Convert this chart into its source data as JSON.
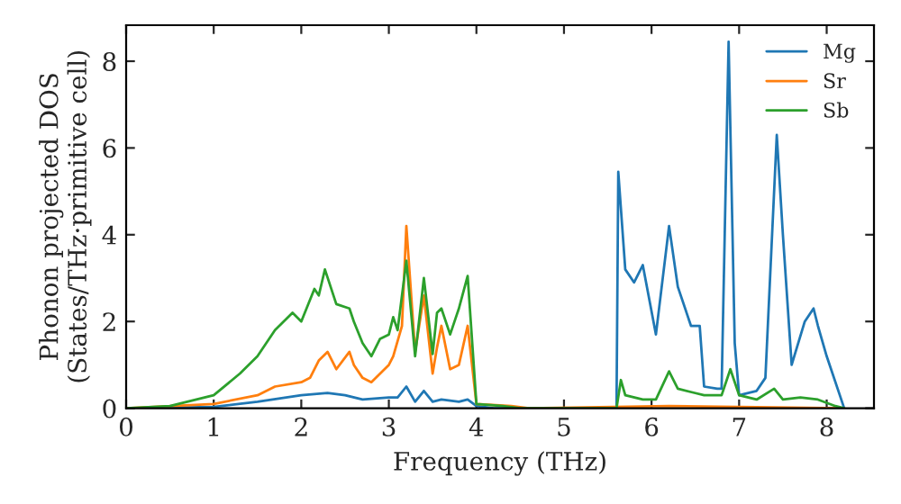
{
  "chart_data": {
    "type": "line",
    "xlabel": "Frequency (THz)",
    "ylabel": "Phonon projected DOS\n(States/THz·primitive cell)",
    "xlim": [
      0,
      8.54
    ],
    "ylim": [
      0,
      8.83
    ],
    "xticks": [
      0,
      1,
      2,
      3,
      4,
      5,
      6,
      7,
      8
    ],
    "yticks": [
      0,
      2,
      4,
      6,
      8
    ],
    "legend": "top right",
    "grid": false,
    "series": [
      {
        "name": "Mg",
        "color": "#1f77b4",
        "x": [
          0,
          1.0,
          1.5,
          2.0,
          2.3,
          2.5,
          2.7,
          3.0,
          3.1,
          3.2,
          3.3,
          3.4,
          3.5,
          3.6,
          3.8,
          3.9,
          4.0,
          4.2,
          5.6,
          5.62,
          5.7,
          5.8,
          5.9,
          6.05,
          6.2,
          6.3,
          6.45,
          6.55,
          6.6,
          6.75,
          6.8,
          6.88,
          6.95,
          7.0,
          7.2,
          7.3,
          7.43,
          7.5,
          7.6,
          7.75,
          7.85,
          7.9,
          8.0,
          8.15,
          8.2
        ],
        "values": [
          0,
          0.03,
          0.15,
          0.3,
          0.35,
          0.3,
          0.2,
          0.25,
          0.25,
          0.5,
          0.15,
          0.4,
          0.15,
          0.2,
          0.15,
          0.2,
          0.05,
          0,
          0,
          5.45,
          3.2,
          2.9,
          3.3,
          1.7,
          4.2,
          2.8,
          1.9,
          1.9,
          0.5,
          0.45,
          0.45,
          8.45,
          1.5,
          0.3,
          0.4,
          0.7,
          6.3,
          4.0,
          1.0,
          2.0,
          2.3,
          1.9,
          1.2,
          0.3,
          0
        ]
      },
      {
        "name": "Sr",
        "color": "#ff7f0e",
        "x": [
          0,
          1.0,
          1.5,
          1.7,
          2.0,
          2.1,
          2.2,
          2.3,
          2.4,
          2.55,
          2.6,
          2.7,
          2.8,
          3.0,
          3.05,
          3.15,
          3.2,
          3.3,
          3.4,
          3.5,
          3.55,
          3.6,
          3.7,
          3.8,
          3.9,
          4.0,
          4.4,
          4.6,
          6.2,
          8.2
        ],
        "values": [
          0,
          0.1,
          0.3,
          0.5,
          0.6,
          0.7,
          1.1,
          1.3,
          0.9,
          1.3,
          1.0,
          0.7,
          0.6,
          1.0,
          1.2,
          1.9,
          4.2,
          1.3,
          2.6,
          0.8,
          1.4,
          1.9,
          0.9,
          1.0,
          1.9,
          0.1,
          0.05,
          0,
          0.05,
          0
        ]
      },
      {
        "name": "Sb",
        "color": "#2ca02c",
        "x": [
          0,
          0.5,
          1.0,
          1.3,
          1.5,
          1.7,
          1.9,
          2.0,
          2.15,
          2.2,
          2.27,
          2.4,
          2.55,
          2.6,
          2.7,
          2.8,
          2.9,
          3.0,
          3.05,
          3.1,
          3.2,
          3.3,
          3.4,
          3.5,
          3.55,
          3.6,
          3.7,
          3.8,
          3.9,
          4.0,
          4.3,
          4.5,
          5.6,
          5.65,
          5.7,
          5.9,
          6.05,
          6.2,
          6.3,
          6.5,
          6.6,
          6.8,
          6.9,
          7.0,
          7.2,
          7.4,
          7.5,
          7.7,
          7.9,
          8.1,
          8.2
        ],
        "values": [
          0,
          0.05,
          0.3,
          0.8,
          1.2,
          1.8,
          2.2,
          2.0,
          2.75,
          2.6,
          3.2,
          2.4,
          2.3,
          2.0,
          1.5,
          1.2,
          1.6,
          1.7,
          2.1,
          1.8,
          3.4,
          1.2,
          3.0,
          1.25,
          2.2,
          2.3,
          1.7,
          2.3,
          3.05,
          0.1,
          0.05,
          0,
          0,
          0.65,
          0.3,
          0.2,
          0.2,
          0.85,
          0.45,
          0.35,
          0.3,
          0.3,
          0.9,
          0.3,
          0.2,
          0.45,
          0.2,
          0.25,
          0.2,
          0.05,
          0
        ]
      }
    ]
  }
}
